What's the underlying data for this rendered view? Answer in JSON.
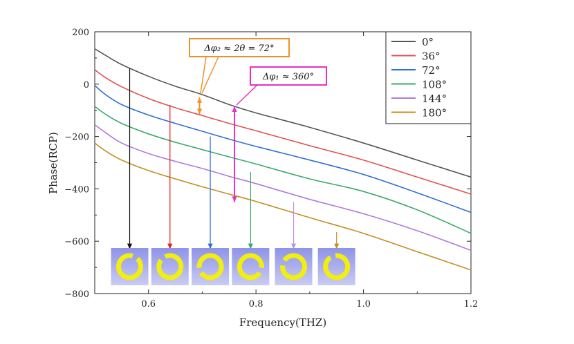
{
  "chart_data": {
    "type": "line",
    "title": "",
    "xlabel": "Frequency(THZ)",
    "ylabel": "Phase(RCP)",
    "xlim": [
      0.5,
      1.2
    ],
    "ylim": [
      -800,
      200
    ],
    "xticks": [
      0.6,
      0.8,
      1.0,
      1.2
    ],
    "xtick_labels": [
      "0.6",
      "0.8",
      "1.0",
      "1.2"
    ],
    "yticks": [
      200,
      0,
      -200,
      -400,
      -600,
      -800
    ],
    "ytick_labels": [
      "200",
      "0",
      "−200",
      "−400",
      "−600",
      "−800"
    ],
    "legend_position": "top-right",
    "series": [
      {
        "name": "0°",
        "color": "#555555",
        "x": [
          0.5,
          0.52,
          0.55,
          0.6,
          0.65,
          0.7,
          0.75,
          0.8,
          0.9,
          1.0,
          1.1,
          1.2
        ],
        "y": [
          135,
          110,
          75,
          30,
          -8,
          -40,
          -78,
          -110,
          -165,
          -225,
          -290,
          -355
        ]
      },
      {
        "name": "36°",
        "color": "#e05050",
        "x": [
          0.5,
          0.52,
          0.55,
          0.6,
          0.65,
          0.7,
          0.75,
          0.8,
          0.9,
          1.0,
          1.1,
          1.2
        ],
        "y": [
          55,
          25,
          -10,
          -55,
          -90,
          -120,
          -150,
          -178,
          -235,
          -290,
          -355,
          -420
        ]
      },
      {
        "name": "72°",
        "color": "#2f6fd0",
        "x": [
          0.5,
          0.52,
          0.55,
          0.6,
          0.65,
          0.7,
          0.75,
          0.8,
          0.9,
          1.0,
          1.1,
          1.2
        ],
        "y": [
          -5,
          -40,
          -78,
          -118,
          -150,
          -180,
          -210,
          -238,
          -290,
          -345,
          -415,
          -490
        ]
      },
      {
        "name": "108°",
        "color": "#3aaa6a",
        "x": [
          0.5,
          0.52,
          0.55,
          0.6,
          0.65,
          0.7,
          0.75,
          0.8,
          0.9,
          1.0,
          1.1,
          1.2
        ],
        "y": [
          -85,
          -115,
          -150,
          -190,
          -222,
          -250,
          -278,
          -305,
          -362,
          -410,
          -480,
          -570
        ]
      },
      {
        "name": "144°",
        "color": "#b07ad8",
        "x": [
          0.5,
          0.52,
          0.55,
          0.6,
          0.65,
          0.7,
          0.75,
          0.8,
          0.9,
          1.0,
          1.1,
          1.2
        ],
        "y": [
          -155,
          -185,
          -225,
          -265,
          -295,
          -322,
          -352,
          -380,
          -440,
          -495,
          -560,
          -635
        ]
      },
      {
        "name": "180°",
        "color": "#c09020",
        "x": [
          0.5,
          0.52,
          0.55,
          0.6,
          0.65,
          0.7,
          0.75,
          0.8,
          0.9,
          1.0,
          1.1,
          1.2
        ],
        "y": [
          -225,
          -255,
          -290,
          -330,
          -362,
          -392,
          -420,
          -448,
          -510,
          -570,
          -640,
          -710
        ]
      }
    ],
    "annotations": [
      {
        "text": "Δφ₂ ≈ 2θ = 72°",
        "color": "#f0902a"
      },
      {
        "text": "Δφ₁ ≈ 360°",
        "color": "#e830c0"
      }
    ],
    "arrows": [
      {
        "name": "delta-phi2-arrow",
        "color": "#f0902a",
        "x": 0.695,
        "y_from": -50,
        "y_to": -115,
        "double": true
      },
      {
        "name": "delta-phi1-arrow",
        "color": "#e830c0",
        "x": 0.76,
        "y_from": -85,
        "y_to": -450,
        "double": true
      },
      {
        "name": "unit-0-arrow",
        "color": "#111111",
        "x": 0.565,
        "y_from": 60,
        "y_to": -630
      },
      {
        "name": "unit-36-arrow",
        "color": "#e02020",
        "x": 0.64,
        "y_from": -80,
        "y_to": -630
      },
      {
        "name": "unit-72-arrow",
        "color": "#2f6fd0",
        "x": 0.715,
        "y_from": -200,
        "y_to": -630
      },
      {
        "name": "unit-108-arrow",
        "color": "#3aaa6a",
        "x": 0.79,
        "y_from": -335,
        "y_to": -630
      },
      {
        "name": "unit-144-arrow",
        "color": "#c090e0",
        "x": 0.87,
        "y_from": -450,
        "y_to": -630
      },
      {
        "name": "unit-180-arrow",
        "color": "#c09020",
        "x": 0.95,
        "y_from": -565,
        "y_to": -630
      }
    ],
    "unit_cells": [
      {
        "name": "unit-cell-0",
        "x": 0.565,
        "gap_angle": -60
      },
      {
        "name": "unit-cell-36",
        "x": 0.64,
        "gap_angle": -130
      },
      {
        "name": "unit-cell-72",
        "x": 0.715,
        "gap_angle": 160
      },
      {
        "name": "unit-cell-108",
        "x": 0.79,
        "gap_angle": 20
      },
      {
        "name": "unit-cell-144",
        "x": 0.87,
        "gap_angle": 200
      },
      {
        "name": "unit-cell-180",
        "x": 0.95,
        "gap_angle": -110
      }
    ]
  }
}
